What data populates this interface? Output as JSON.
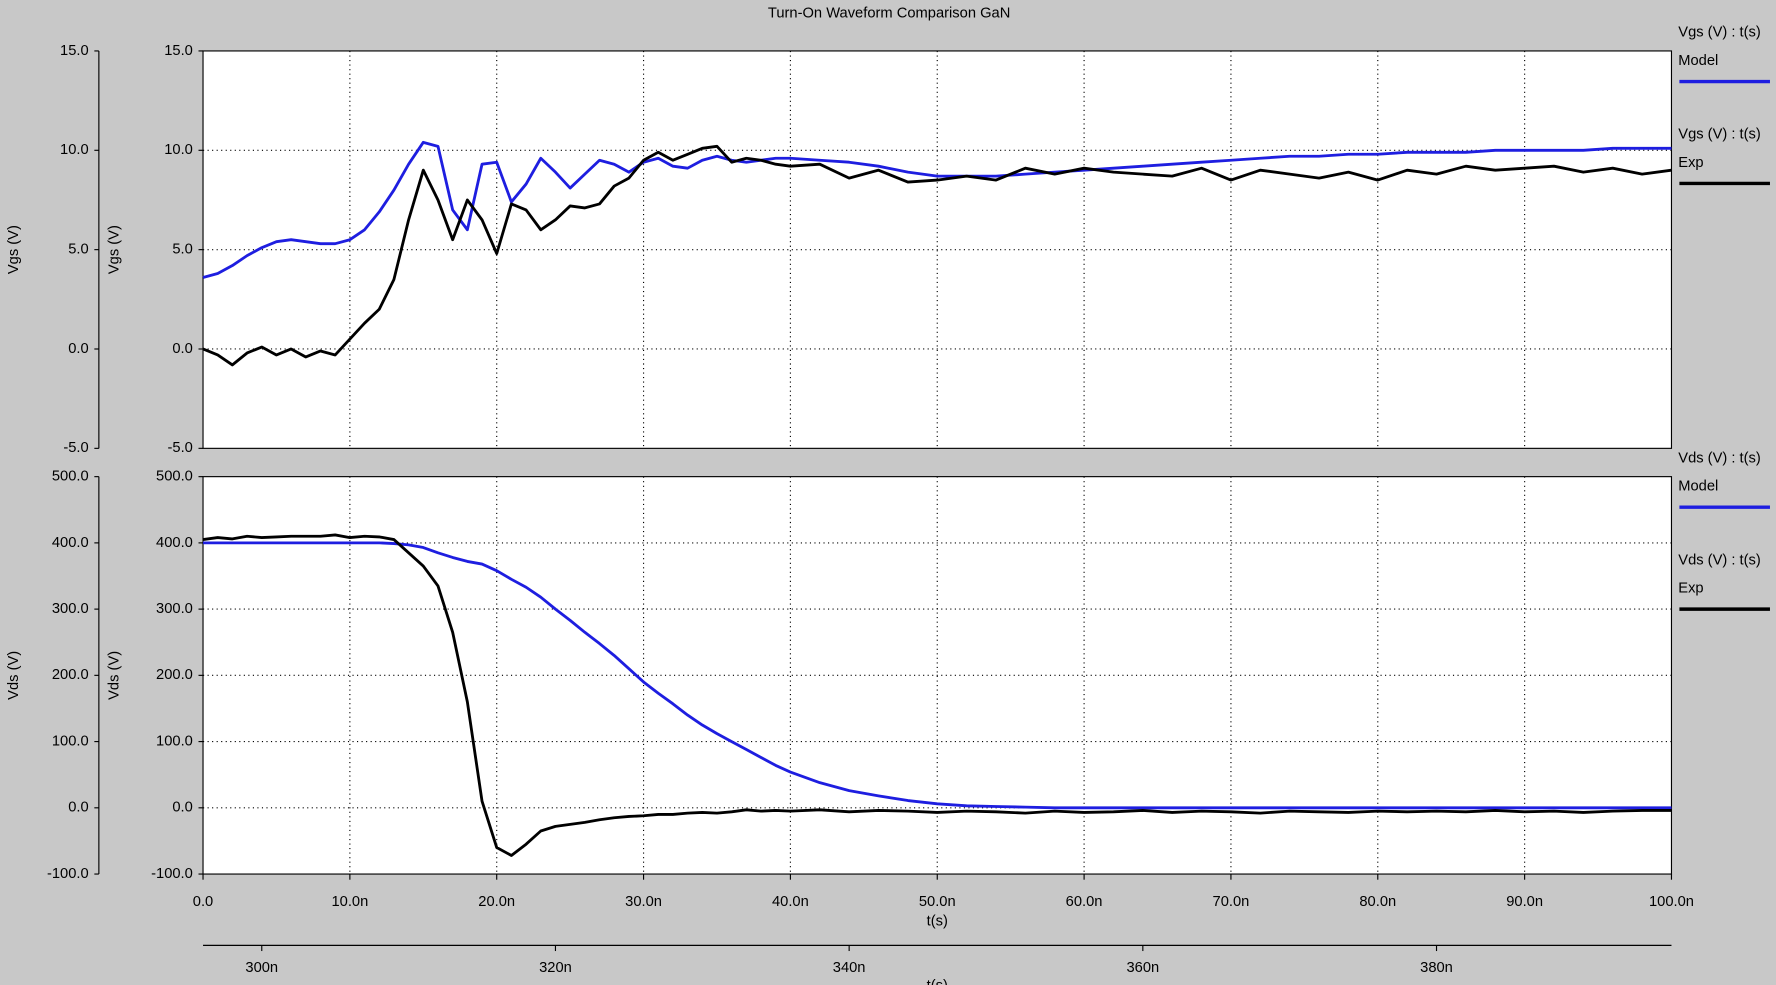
{
  "title": "Turn-On Waveform Comparison GaN",
  "chart_data": [
    {
      "type": "line",
      "ylabel": "Vgs (V)",
      "x": [
        0,
        1,
        2,
        3,
        4,
        5,
        6,
        7,
        8,
        9,
        10,
        11,
        12,
        13,
        14,
        15,
        16,
        17,
        18,
        19,
        20,
        21,
        22,
        23,
        24,
        25,
        26,
        27,
        28,
        29,
        30,
        31,
        32,
        33,
        34,
        35,
        36,
        37,
        38,
        39,
        40,
        42,
        44,
        46,
        48,
        50,
        52,
        54,
        56,
        58,
        60,
        62,
        64,
        66,
        68,
        70,
        72,
        74,
        76,
        78,
        80,
        82,
        84,
        86,
        88,
        90,
        92,
        94,
        96,
        98,
        100
      ],
      "xlim": [
        0,
        100
      ],
      "xticks": [
        0,
        10,
        20,
        30,
        40,
        50,
        60,
        70,
        80,
        90,
        100
      ],
      "ylim": [
        -5,
        15
      ],
      "yticks": [
        {
          "value": -5,
          "label": "-5.0"
        },
        {
          "value": 0,
          "label": "0.0"
        },
        {
          "value": 5,
          "label": "5.0"
        },
        {
          "value": 10,
          "label": "10.0"
        },
        {
          "value": 15,
          "label": "15.0"
        }
      ],
      "grid": true,
      "series": [
        {
          "name": "Model",
          "signal": "Vgs (V) : t(s)",
          "color": "#1e1ee0",
          "values": [
            3.6,
            3.8,
            4.2,
            4.7,
            5.1,
            5.4,
            5.5,
            5.4,
            5.3,
            5.3,
            5.5,
            6.0,
            6.9,
            8.0,
            9.3,
            10.4,
            10.2,
            7.0,
            6.0,
            9.3,
            9.4,
            7.4,
            8.3,
            9.6,
            8.9,
            8.1,
            8.8,
            9.5,
            9.3,
            8.9,
            9.4,
            9.6,
            9.2,
            9.1,
            9.5,
            9.7,
            9.5,
            9.4,
            9.5,
            9.6,
            9.6,
            9.5,
            9.4,
            9.2,
            8.9,
            8.7,
            8.7,
            8.7,
            8.8,
            8.9,
            9.0,
            9.1,
            9.2,
            9.3,
            9.4,
            9.5,
            9.6,
            9.7,
            9.7,
            9.8,
            9.8,
            9.9,
            9.9,
            9.9,
            10.0,
            10.0,
            10.0,
            10.0,
            10.1,
            10.1,
            10.1
          ]
        },
        {
          "name": "Exp",
          "signal": "Vgs (V) : t(s)",
          "color": "#000000",
          "values": [
            0.0,
            -0.3,
            -0.8,
            -0.2,
            0.1,
            -0.3,
            0.0,
            -0.4,
            -0.1,
            -0.3,
            0.5,
            1.3,
            2.0,
            3.5,
            6.5,
            9.0,
            7.5,
            5.5,
            7.5,
            6.5,
            4.8,
            7.3,
            7.0,
            6.0,
            6.5,
            7.2,
            7.1,
            7.3,
            8.2,
            8.6,
            9.5,
            9.9,
            9.5,
            9.8,
            10.1,
            10.2,
            9.4,
            9.6,
            9.5,
            9.3,
            9.2,
            9.3,
            8.6,
            9.0,
            8.4,
            8.5,
            8.7,
            8.5,
            9.1,
            8.8,
            9.1,
            8.9,
            8.8,
            8.7,
            9.1,
            8.5,
            9.0,
            8.8,
            8.6,
            8.9,
            8.5,
            9.0,
            8.8,
            9.2,
            9.0,
            9.1,
            9.2,
            8.9,
            9.1,
            8.8,
            9.0
          ]
        }
      ]
    },
    {
      "type": "line",
      "ylabel": "Vds (V)",
      "xlabel": "t(s)",
      "x": [
        0,
        1,
        2,
        3,
        4,
        5,
        6,
        7,
        8,
        9,
        10,
        11,
        12,
        13,
        14,
        15,
        16,
        17,
        18,
        19,
        20,
        21,
        22,
        23,
        24,
        25,
        26,
        27,
        28,
        29,
        30,
        31,
        32,
        33,
        34,
        35,
        36,
        37,
        38,
        39,
        40,
        42,
        44,
        46,
        48,
        50,
        52,
        54,
        56,
        58,
        60,
        62,
        64,
        66,
        68,
        70,
        72,
        74,
        76,
        78,
        80,
        82,
        84,
        86,
        88,
        90,
        92,
        94,
        96,
        98,
        100
      ],
      "xlim": [
        0,
        100
      ],
      "xticks": [
        {
          "value": 0,
          "label": "0.0"
        },
        {
          "value": 10,
          "label": "10.0n"
        },
        {
          "value": 20,
          "label": "20.0n"
        },
        {
          "value": 30,
          "label": "30.0n"
        },
        {
          "value": 40,
          "label": "40.0n"
        },
        {
          "value": 50,
          "label": "50.0n"
        },
        {
          "value": 60,
          "label": "60.0n"
        },
        {
          "value": 70,
          "label": "70.0n"
        },
        {
          "value": 80,
          "label": "80.0n"
        },
        {
          "value": 90,
          "label": "90.0n"
        },
        {
          "value": 100,
          "label": "100.0n"
        }
      ],
      "ylim": [
        -100,
        500
      ],
      "yticks": [
        {
          "value": -100,
          "label": "-100.0"
        },
        {
          "value": 0,
          "label": "0.0"
        },
        {
          "value": 100,
          "label": "100.0"
        },
        {
          "value": 200,
          "label": "200.0"
        },
        {
          "value": 300,
          "label": "300.0"
        },
        {
          "value": 400,
          "label": "400.0"
        },
        {
          "value": 500,
          "label": "500.0"
        }
      ],
      "grid": true,
      "x2label": "t(s)",
      "x2lim": [
        296,
        396
      ],
      "x2ticks": [
        {
          "value": 300,
          "label": "300n"
        },
        {
          "value": 320,
          "label": "320n"
        },
        {
          "value": 340,
          "label": "340n"
        },
        {
          "value": 360,
          "label": "360n"
        },
        {
          "value": 380,
          "label": "380n"
        }
      ],
      "series": [
        {
          "name": "Model",
          "signal": "Vds (V) : t(s)",
          "color": "#1e1ee0",
          "values": [
            400,
            400,
            400,
            400,
            400,
            400,
            400,
            400,
            400,
            400,
            400,
            400,
            400,
            399,
            397,
            393,
            385,
            378,
            372,
            368,
            358,
            345,
            333,
            318,
            300,
            283,
            265,
            248,
            230,
            210,
            190,
            173,
            157,
            140,
            125,
            112,
            100,
            88,
            76,
            64,
            54,
            38,
            26,
            18,
            11,
            6,
            3,
            2,
            1,
            0,
            0,
            0,
            0,
            0,
            0,
            0,
            0,
            0,
            0,
            0,
            0,
            0,
            0,
            0,
            0,
            0,
            0,
            0,
            0,
            0,
            0
          ]
        },
        {
          "name": "Exp",
          "signal": "Vds (V) : t(s)",
          "color": "#000000",
          "values": [
            405,
            408,
            406,
            410,
            408,
            409,
            410,
            410,
            410,
            412,
            408,
            410,
            409,
            405,
            385,
            365,
            335,
            265,
            160,
            10,
            -60,
            -72,
            -55,
            -35,
            -28,
            -25,
            -22,
            -18,
            -15,
            -13,
            -12,
            -10,
            -10,
            -8,
            -7,
            -8,
            -6,
            -3,
            -5,
            -4,
            -5,
            -3,
            -6,
            -4,
            -5,
            -7,
            -5,
            -6,
            -8,
            -5,
            -7,
            -6,
            -4,
            -7,
            -5,
            -6,
            -8,
            -5,
            -6,
            -7,
            -5,
            -6,
            -5,
            -6,
            -4,
            -6,
            -5,
            -7,
            -5,
            -4,
            -4
          ]
        }
      ]
    }
  ]
}
